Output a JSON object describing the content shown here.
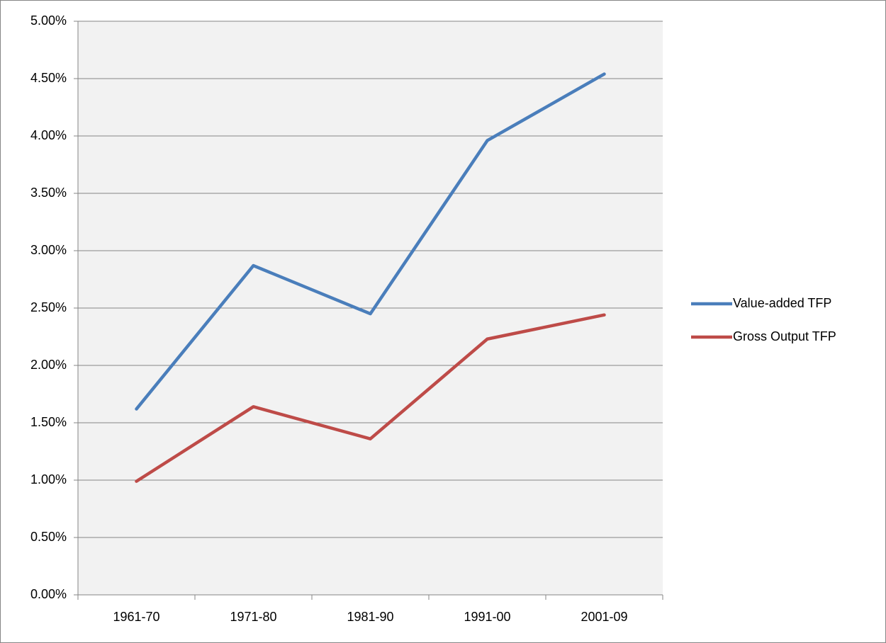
{
  "chart_data": {
    "type": "line",
    "categories": [
      "1961-70",
      "1971-80",
      "1981-90",
      "1991-00",
      "2001-09"
    ],
    "series": [
      {
        "name": "Value-added TFP",
        "color": "#4a7ebb",
        "values": [
          1.62,
          2.87,
          2.45,
          3.96,
          4.54
        ]
      },
      {
        "name": "Gross Output TFP",
        "color": "#be4b48",
        "values": [
          0.99,
          1.64,
          1.36,
          2.23,
          2.44
        ]
      }
    ],
    "ylim": [
      0,
      5
    ],
    "yticks": [
      {
        "value": 0,
        "label": "0.00%"
      },
      {
        "value": 0.5,
        "label": "0.50%"
      },
      {
        "value": 1,
        "label": "1.00%"
      },
      {
        "value": 1.5,
        "label": "1.50%"
      },
      {
        "value": 2,
        "label": "2.00%"
      },
      {
        "value": 2.5,
        "label": "2.50%"
      },
      {
        "value": 3,
        "label": "3.00%"
      },
      {
        "value": 3.5,
        "label": "3.50%"
      },
      {
        "value": 4,
        "label": "4.00%"
      },
      {
        "value": 4.5,
        "label": "4.50%"
      },
      {
        "value": 5,
        "label": "5.00%"
      }
    ],
    "grid": true,
    "legend": "right"
  }
}
